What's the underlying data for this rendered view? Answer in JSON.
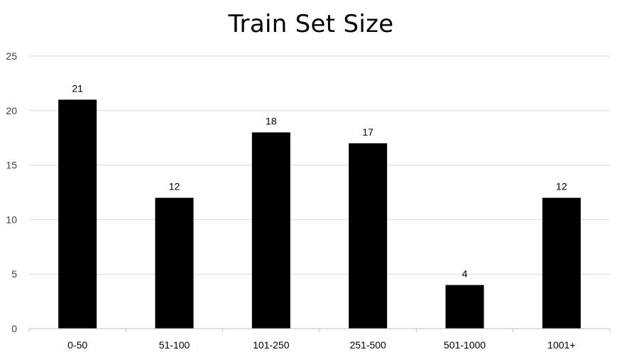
{
  "chart_data": {
    "type": "bar",
    "title": "Train Set Size",
    "categories": [
      "0-50",
      "51-100",
      "101-250",
      "251-500",
      "501-1000",
      "1001+"
    ],
    "values": [
      21,
      12,
      18,
      17,
      4,
      12
    ],
    "data_labels": [
      "21",
      "12",
      "18",
      "17",
      "4",
      "12"
    ],
    "y_ticks": [
      0,
      5,
      10,
      15,
      20,
      25
    ],
    "ylim": [
      0,
      25
    ],
    "xlabel": "",
    "ylabel": "",
    "grid": true,
    "legend": "none",
    "colors": {
      "bar": "#000000",
      "grid": "#d9d9d9",
      "axis": "#bfbfbf",
      "text": "#000000",
      "tick_text": "#404040"
    }
  }
}
